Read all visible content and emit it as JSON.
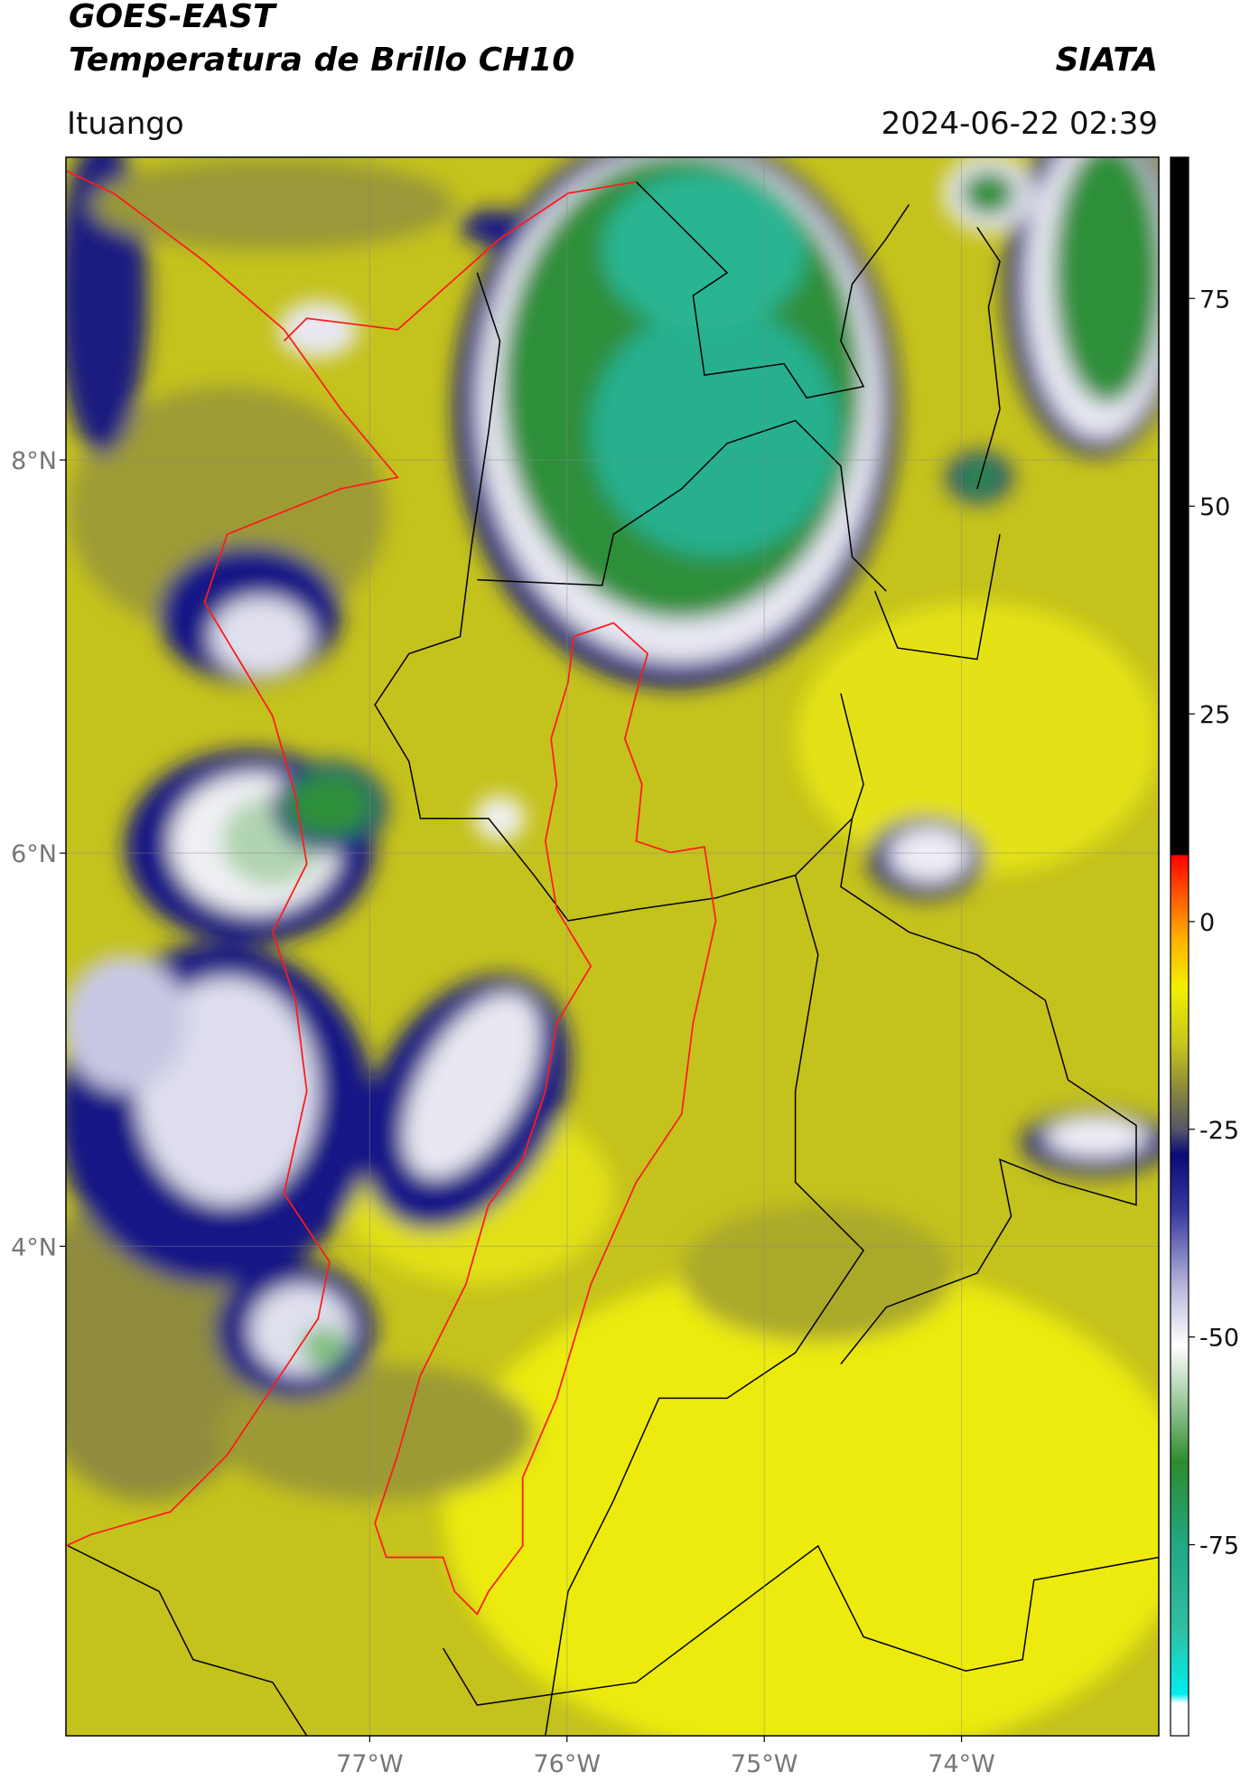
{
  "header": {
    "title": "GOES-EAST",
    "subtitle": "Temperatura de Brillo CH10",
    "brand": "SIATA",
    "location": "Ituango",
    "timestamp": "2024-06-22 02:39"
  },
  "map": {
    "xlim": [
      -78.54,
      -73.0
    ],
    "ylim": [
      1.51,
      9.54
    ],
    "xticks": [
      {
        "value": -77,
        "label": "77°W"
      },
      {
        "value": -76,
        "label": "76°W"
      },
      {
        "value": -75,
        "label": "75°W"
      },
      {
        "value": -74,
        "label": "74°W"
      }
    ],
    "yticks": [
      {
        "value": 4,
        "label": "4°N"
      },
      {
        "value": 6,
        "label": "6°N"
      },
      {
        "value": 8,
        "label": "8°N"
      }
    ],
    "grid": true
  },
  "colorbar": {
    "lim": [
      -98,
      92
    ],
    "ticks": [
      -75,
      -50,
      -25,
      0,
      25,
      50,
      75
    ],
    "stops": [
      {
        "value": -98,
        "color": "#ffffff"
      },
      {
        "value": -94,
        "color": "#ffffff"
      },
      {
        "value": -93,
        "color": "#00eeee"
      },
      {
        "value": -85,
        "color": "#2fbfa0"
      },
      {
        "value": -75,
        "color": "#22a884"
      },
      {
        "value": -65,
        "color": "#2e8b2e"
      },
      {
        "value": -57,
        "color": "#a8cfa8"
      },
      {
        "value": -51,
        "color": "#ffffff"
      },
      {
        "value": -44,
        "color": "#b8b8dc"
      },
      {
        "value": -35,
        "color": "#3a3aa0"
      },
      {
        "value": -28,
        "color": "#0a0a78"
      },
      {
        "value": -25,
        "color": "#55556a"
      },
      {
        "value": -20,
        "color": "#8c8a3c"
      },
      {
        "value": -15,
        "color": "#c4c31e"
      },
      {
        "value": -8,
        "color": "#f2f000"
      },
      {
        "value": -2,
        "color": "#ffb000"
      },
      {
        "value": 4,
        "color": "#ff4a00"
      },
      {
        "value": 8,
        "color": "#ff0000"
      },
      {
        "value": 8.1,
        "color": "#000000"
      },
      {
        "value": 92,
        "color": "#000000"
      }
    ]
  }
}
